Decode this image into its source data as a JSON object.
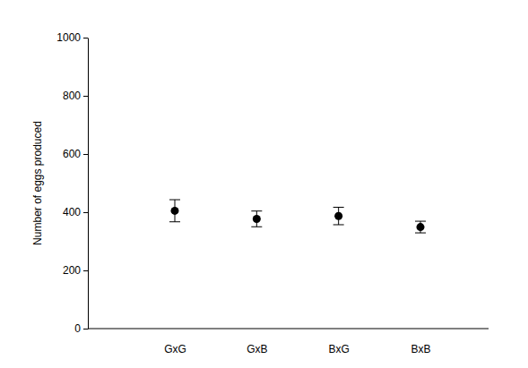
{
  "chart_data": {
    "type": "scatter",
    "y_label": "Number of eggs produced",
    "categories": [
      "GxG",
      "GxB",
      "BxG",
      "BxB"
    ],
    "values": [
      405,
      377,
      387,
      349
    ],
    "errors": [
      38,
      27,
      30,
      20
    ],
    "color": "#000000",
    "marker": "circle",
    "ylim": [
      0,
      1000
    ],
    "yticks": [
      0,
      200,
      400,
      600,
      800,
      1000
    ],
    "grid": false
  }
}
